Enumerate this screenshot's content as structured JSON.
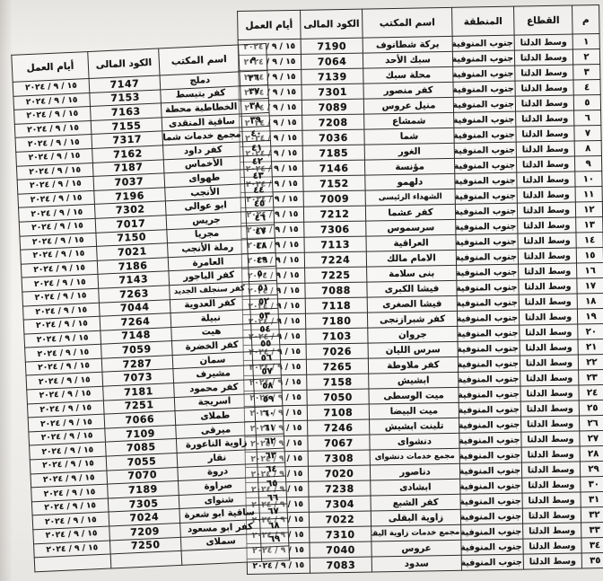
{
  "document_colors": {
    "ink": "#2b2a28",
    "paper": "#f1efec"
  },
  "right_table": {
    "headers": [
      "م",
      "القطاع",
      "المنطقة",
      "اسم المكتب",
      "الكود المالى",
      "أيام العمل"
    ],
    "column_keys": [
      "num",
      "sector",
      "region",
      "office",
      "code",
      "work_date"
    ],
    "shared": {
      "sector": "وسط الدلتا",
      "region": "جنوب المنوفية",
      "work_date": "١٥ / ٩ / ٢٠٢٤"
    },
    "rows": [
      {
        "num": "١",
        "office": "بركة شطانوف",
        "code": "7190"
      },
      {
        "num": "٢",
        "office": "سبك الأحد",
        "code": "7064"
      },
      {
        "num": "٣",
        "office": "محلة سبك",
        "code": "7139"
      },
      {
        "num": "٤",
        "office": "كفر منصور",
        "code": "7301"
      },
      {
        "num": "٥",
        "office": "منيل عروس",
        "code": "7089"
      },
      {
        "num": "٦",
        "office": "شمشاع",
        "code": "7208"
      },
      {
        "num": "٧",
        "office": "شما",
        "code": "7036"
      },
      {
        "num": "٨",
        "office": "الغور",
        "code": "7185"
      },
      {
        "num": "٩",
        "office": "مؤنسة",
        "code": "7146"
      },
      {
        "num": "١٠",
        "office": "دلهمو",
        "code": "7152"
      },
      {
        "num": "١١",
        "office": "الشهداء الرئيسى",
        "code": "7009"
      },
      {
        "num": "١٢",
        "office": "كفر عشما",
        "code": "7212"
      },
      {
        "num": "١٣",
        "office": "سرسموس",
        "code": "7306"
      },
      {
        "num": "١٤",
        "office": "العراقية",
        "code": "7113"
      },
      {
        "num": "١٥",
        "office": "الامام مالك",
        "code": "7224"
      },
      {
        "num": "١٦",
        "office": "بنى سلامة",
        "code": "7225"
      },
      {
        "num": "١٧",
        "office": "فيشا الكبرى",
        "code": "7088"
      },
      {
        "num": "١٨",
        "office": "فيشا الصغرى",
        "code": "7118"
      },
      {
        "num": "١٩",
        "office": "كفر شبرازنجى",
        "code": "7180"
      },
      {
        "num": "٢٠",
        "office": "جروان",
        "code": "7103"
      },
      {
        "num": "٢١",
        "office": "سرس الليان",
        "code": "7026"
      },
      {
        "num": "٢٢",
        "office": "كفر ملاوطة",
        "code": "7265"
      },
      {
        "num": "٢٣",
        "office": "ابشيش",
        "code": "7158"
      },
      {
        "num": "٢٤",
        "office": "ميت الوسطى",
        "code": "7050"
      },
      {
        "num": "٢٥",
        "office": "ميت البيضا",
        "code": "7108"
      },
      {
        "num": "٢٦",
        "office": "تلبنت ابشيش",
        "code": "7246"
      },
      {
        "num": "٢٧",
        "office": "دنشواى",
        "code": "7067"
      },
      {
        "num": "٢٨",
        "office": "مجمع خدمات دنشواى",
        "code": "7308"
      },
      {
        "num": "٢٩",
        "office": "دناصور",
        "code": "7020"
      },
      {
        "num": "٣٠",
        "office": "ابشادى",
        "code": "7238"
      },
      {
        "num": "٣١",
        "office": "كفر الشبع",
        "code": "7304"
      },
      {
        "num": "٣٢",
        "office": "زاوية البقلى",
        "code": "7022"
      },
      {
        "num": "٣٣",
        "office": "مجمع خدمات زاوية البقلى",
        "code": "7310"
      },
      {
        "num": "٣٤",
        "office": "عروس",
        "code": "7040"
      },
      {
        "num": "٣٥",
        "office": "سدود",
        "code": "7083"
      }
    ],
    "trailing_empty_rows": 0
  },
  "left_table": {
    "headers": [
      "م",
      "اسم المكتب",
      "الكود المالى",
      "أيام العمل"
    ],
    "column_keys": [
      "num",
      "office",
      "code",
      "work_date"
    ],
    "shared": {
      "work_date": "١٥ / ٩ / ٢٠٢٤"
    },
    "rows": [
      {
        "num": "٣٦",
        "office": "دملج",
        "code": "7147"
      },
      {
        "num": "٣٧",
        "office": "كفر بتبسط",
        "code": "7153"
      },
      {
        "num": "٣٨",
        "office": "الخطاطبة محطة",
        "code": "7163"
      },
      {
        "num": "٣٩",
        "office": "ساقية المنقدى",
        "code": "7155"
      },
      {
        "num": "٤٠",
        "office": "مجمع خدمات شما",
        "code": "7317"
      },
      {
        "num": "٤١",
        "office": "كفر داود",
        "code": "7162"
      },
      {
        "num": "٤٢",
        "office": "الأخماس",
        "code": "7187"
      },
      {
        "num": "٤٣",
        "office": "طهواى",
        "code": "7037"
      },
      {
        "num": "٤٤",
        "office": "الأنجب",
        "code": "7196"
      },
      {
        "num": "٤٥",
        "office": "ابو عوالى",
        "code": "7302"
      },
      {
        "num": "٤٦",
        "office": "جريس",
        "code": "7017"
      },
      {
        "num": "٤٧",
        "office": "مجريا",
        "code": "7150"
      },
      {
        "num": "٤٨",
        "office": "رملة الأنجب",
        "code": "7021"
      },
      {
        "num": "٤٩",
        "office": "العامرة",
        "code": "7186"
      },
      {
        "num": "٥٠",
        "office": "كفر الباجور",
        "code": "7143"
      },
      {
        "num": "٥١",
        "office": "كفر سنجلف الجديد",
        "code": "7263"
      },
      {
        "num": "٥٢",
        "office": "كفر العدوية",
        "code": "7044"
      },
      {
        "num": "٥٣",
        "office": "نبيلة",
        "code": "7264"
      },
      {
        "num": "٥٤",
        "office": "هيت",
        "code": "7148"
      },
      {
        "num": "٥٥",
        "office": "كفر الخضرة",
        "code": "7059"
      },
      {
        "num": "٥٦",
        "office": "سمان",
        "code": "7287"
      },
      {
        "num": "٥٧",
        "office": "مشيرف",
        "code": "7073"
      },
      {
        "num": "٥٨",
        "office": "كفر محمود",
        "code": "7181"
      },
      {
        "num": "٥٩",
        "office": "اسريجة",
        "code": "7251"
      },
      {
        "num": "٦٠",
        "office": "طملاى",
        "code": "7066"
      },
      {
        "num": "٦١",
        "office": "ميرقى",
        "code": "7109"
      },
      {
        "num": "٦٢",
        "office": "زاوية الناعورة",
        "code": "7085"
      },
      {
        "num": "٦٣",
        "office": "نقار",
        "code": "7055"
      },
      {
        "num": "٦٤",
        "office": "دروة",
        "code": "7070"
      },
      {
        "num": "٦٥",
        "office": "صراوة",
        "code": "7189"
      },
      {
        "num": "٦٦",
        "office": "شنواى",
        "code": "7305"
      },
      {
        "num": "٦٧",
        "office": "ساقية ابو شعرة",
        "code": "7024"
      },
      {
        "num": "٦٨",
        "office": "كفر ابو مسعود",
        "code": "7209"
      },
      {
        "num": "٦٩",
        "office": "سملاى",
        "code": "7250"
      }
    ],
    "trailing_empty_rows": 1
  }
}
